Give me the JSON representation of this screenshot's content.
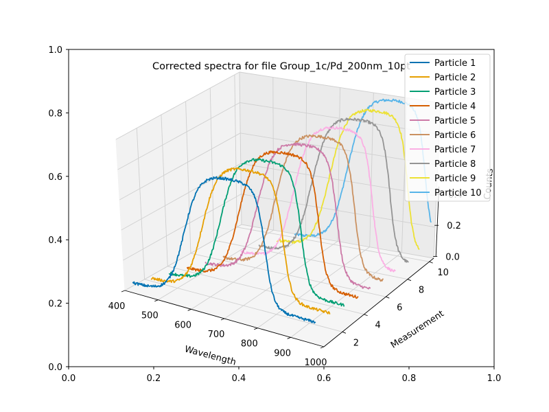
{
  "chart_data": {
    "type": "line",
    "title": "Corrected spectra for file Group_1c/Pd_200nm_10pt",
    "outer_axes": {
      "xlim": [
        0.0,
        1.0
      ],
      "ylim": [
        0.0,
        1.0
      ],
      "xticks": [
        "0.0",
        "0.2",
        "0.4",
        "0.6",
        "0.8",
        "1.0"
      ],
      "yticks": [
        "0.0",
        "0.2",
        "0.4",
        "0.6",
        "0.8",
        "1.0"
      ]
    },
    "xlabel": "Wavelength",
    "ylabel": "Measurement",
    "zlabel": "Counts",
    "xlim": [
      400,
      1000
    ],
    "ylim": [
      1,
      10
    ],
    "zlim": [
      0.0,
      1.0
    ],
    "xticks": [
      "400",
      "500",
      "600",
      "700",
      "800",
      "900",
      "1000"
    ],
    "yticks": [
      "2",
      "4",
      "6",
      "8",
      "10"
    ],
    "zticks": [
      "0.0",
      "0.2",
      "0.4"
    ],
    "grid": true,
    "legend_position": "top-right",
    "series": [
      {
        "name": "Particle 1",
        "measurement": 1,
        "color": "#0072b2",
        "baseline": 0.02,
        "peak": 0.88,
        "rise_nm": 560,
        "fall_nm": 795,
        "end": 0.09,
        "start_nm": 400,
        "end_nm": 950
      },
      {
        "name": "Particle 2",
        "measurement": 2,
        "color": "#e69f00",
        "baseline": 0.02,
        "peak": 0.9,
        "rise_nm": 580,
        "fall_nm": 815,
        "end": 0.1,
        "start_nm": 420,
        "end_nm": 960
      },
      {
        "name": "Particle 3",
        "measurement": 3,
        "color": "#009e73",
        "baseline": 0.02,
        "peak": 0.92,
        "rise_nm": 600,
        "fall_nm": 835,
        "end": 0.1,
        "start_nm": 440,
        "end_nm": 970
      },
      {
        "name": "Particle 4",
        "measurement": 4,
        "color": "#d55e00",
        "baseline": 0.02,
        "peak": 0.93,
        "rise_nm": 620,
        "fall_nm": 855,
        "end": 0.1,
        "start_nm": 460,
        "end_nm": 980
      },
      {
        "name": "Particle 5",
        "measurement": 5,
        "color": "#cc79a7",
        "baseline": 0.02,
        "peak": 0.94,
        "rise_nm": 640,
        "fall_nm": 875,
        "end": 0.1,
        "start_nm": 480,
        "end_nm": 985
      },
      {
        "name": "Particle 6",
        "measurement": 6,
        "color": "#ca9161",
        "baseline": 0.02,
        "peak": 0.95,
        "rise_nm": 660,
        "fall_nm": 895,
        "end": 0.1,
        "start_nm": 500,
        "end_nm": 990
      },
      {
        "name": "Particle 7",
        "measurement": 7,
        "color": "#fbafe4",
        "baseline": 0.02,
        "peak": 0.96,
        "rise_nm": 680,
        "fall_nm": 915,
        "end": 0.1,
        "start_nm": 520,
        "end_nm": 995
      },
      {
        "name": "Particle 8",
        "measurement": 8,
        "color": "#949494",
        "baseline": 0.02,
        "peak": 0.97,
        "rise_nm": 700,
        "fall_nm": 935,
        "end": 0.1,
        "start_nm": 540,
        "end_nm": 1000
      },
      {
        "name": "Particle 9",
        "measurement": 9,
        "color": "#ece133",
        "baseline": 0.02,
        "peak": 0.98,
        "rise_nm": 720,
        "fall_nm": 955,
        "end": 0.1,
        "start_nm": 560,
        "end_nm": 1000
      },
      {
        "name": "Particle 10",
        "measurement": 10,
        "color": "#56b4e9",
        "baseline": 0.02,
        "peak": 1.0,
        "rise_nm": 740,
        "fall_nm": 975,
        "end": 0.12,
        "start_nm": 580,
        "end_nm": 1000
      }
    ]
  }
}
